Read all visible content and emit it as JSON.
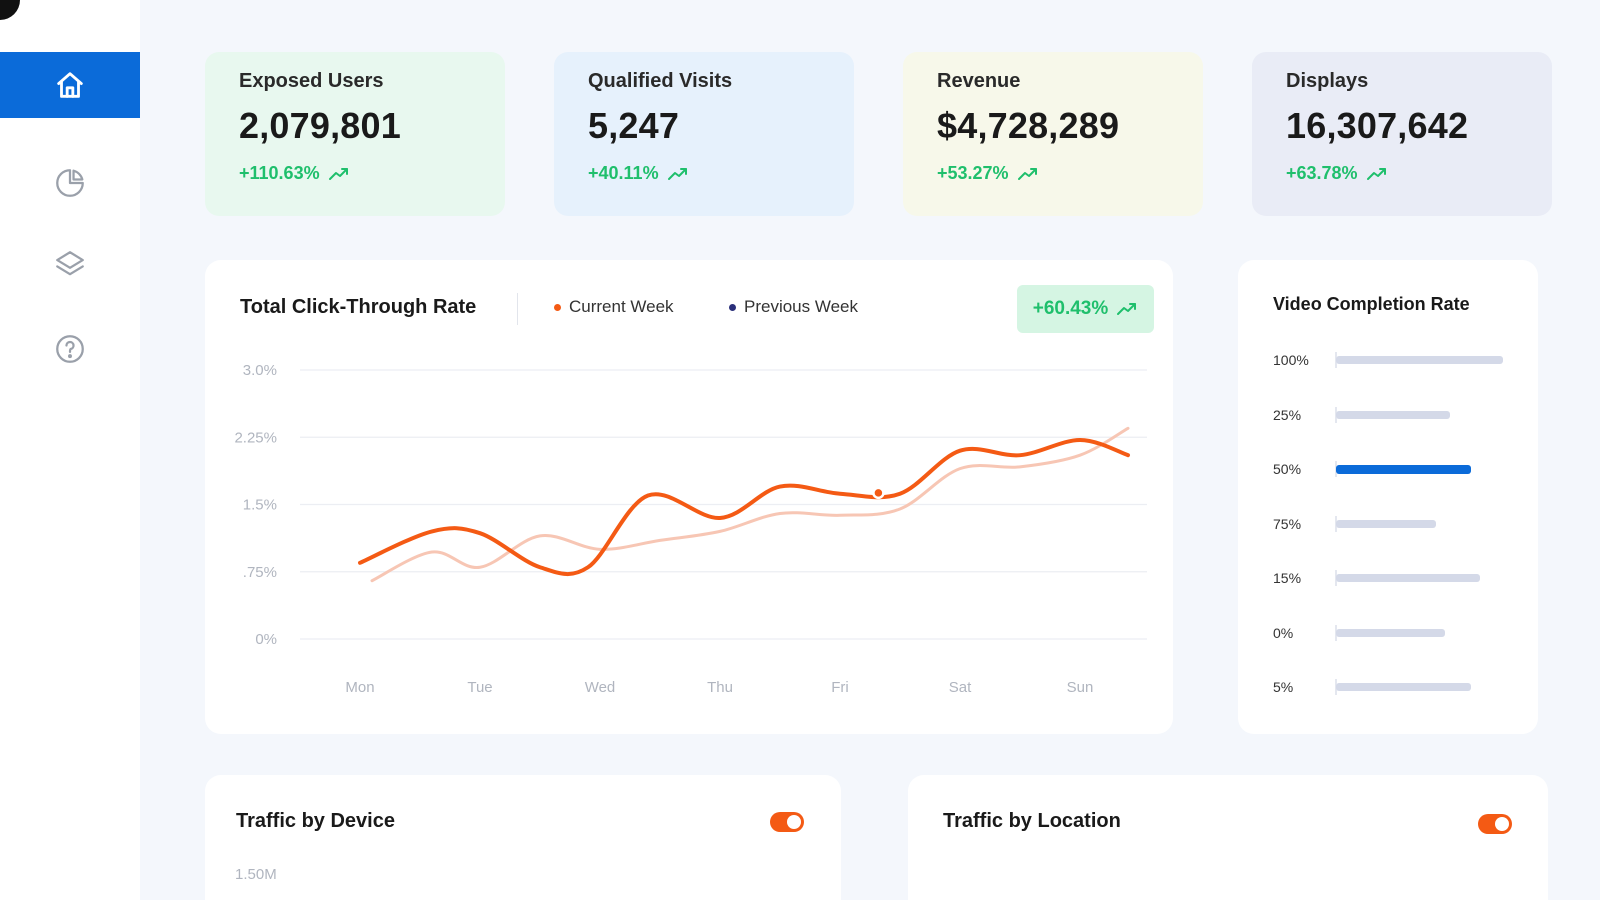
{
  "sidebar": {
    "items": [
      {
        "icon": "home-icon",
        "active": true
      },
      {
        "icon": "pie-chart-icon",
        "active": false
      },
      {
        "icon": "layers-icon",
        "active": false
      },
      {
        "icon": "help-icon",
        "active": false
      }
    ]
  },
  "stats": [
    {
      "label": "Exposed Users",
      "value": "2,079,801",
      "change": "+110.63%",
      "bg": "#e8f8ef"
    },
    {
      "label": "Qualified Visits",
      "value": "5,247",
      "change": "+40.11%",
      "bg": "#e6f1fc"
    },
    {
      "label": "Revenue",
      "value": "$4,728,289",
      "change": "+53.27%",
      "bg": "#f7f8ea"
    },
    {
      "label": "Displays",
      "value": "16,307,642",
      "change": "+63.78%",
      "bg": "#e9ecf6"
    }
  ],
  "ctr_panel": {
    "title": "Total Click-Through Rate",
    "legend_current": "Current Week",
    "legend_previous": "Previous Week",
    "badge": "+60.43%"
  },
  "chart_data": {
    "type": "line",
    "categories": [
      "Mon",
      "Tue",
      "Wed",
      "Thu",
      "Fri",
      "Sat",
      "Sun"
    ],
    "y_ticks": [
      "3.0%",
      "2.25%",
      "1.5%",
      ".75%",
      "0%"
    ],
    "ylim": [
      0,
      3.0
    ],
    "series": [
      {
        "name": "Current Week",
        "color": "#f45a14",
        "x": [
          0,
          0.6,
          1.0,
          1.5,
          1.9,
          2.4,
          3.0,
          3.5,
          4.0,
          4.5,
          5.0,
          5.5,
          6.0,
          6.4
        ],
        "y": [
          0.85,
          1.2,
          1.18,
          0.8,
          0.8,
          1.6,
          1.35,
          1.7,
          1.62,
          1.62,
          2.1,
          2.05,
          2.22,
          2.05
        ]
      },
      {
        "name": "Previous Week",
        "color": "#f7c6b4",
        "x": [
          0.1,
          0.6,
          1.0,
          1.5,
          2.0,
          2.5,
          3.0,
          3.5,
          4.0,
          4.5,
          5.0,
          5.5,
          6.0,
          6.4
        ],
        "y": [
          0.65,
          0.97,
          0.8,
          1.15,
          1.0,
          1.1,
          1.2,
          1.4,
          1.38,
          1.45,
          1.9,
          1.92,
          2.05,
          2.35
        ]
      }
    ],
    "marker_point": {
      "x": 4.32,
      "y": 1.63
    }
  },
  "vcr_panel": {
    "title": "Video Completion Rate",
    "items": [
      {
        "label": "100%",
        "value": 167,
        "highlight": false
      },
      {
        "label": "25%",
        "value": 114,
        "highlight": false
      },
      {
        "label": "50%",
        "value": 135,
        "highlight": true
      },
      {
        "label": "75%",
        "value": 100,
        "highlight": false
      },
      {
        "label": "15%",
        "value": 144,
        "highlight": false
      },
      {
        "label": "0%",
        "value": 109,
        "highlight": false
      },
      {
        "label": "5%",
        "value": 135,
        "highlight": false
      }
    ],
    "max_value": 167
  },
  "device_panel": {
    "title": "Traffic by Device",
    "first_tick": "1.50M"
  },
  "location_panel": {
    "title": "Traffic by Location"
  }
}
